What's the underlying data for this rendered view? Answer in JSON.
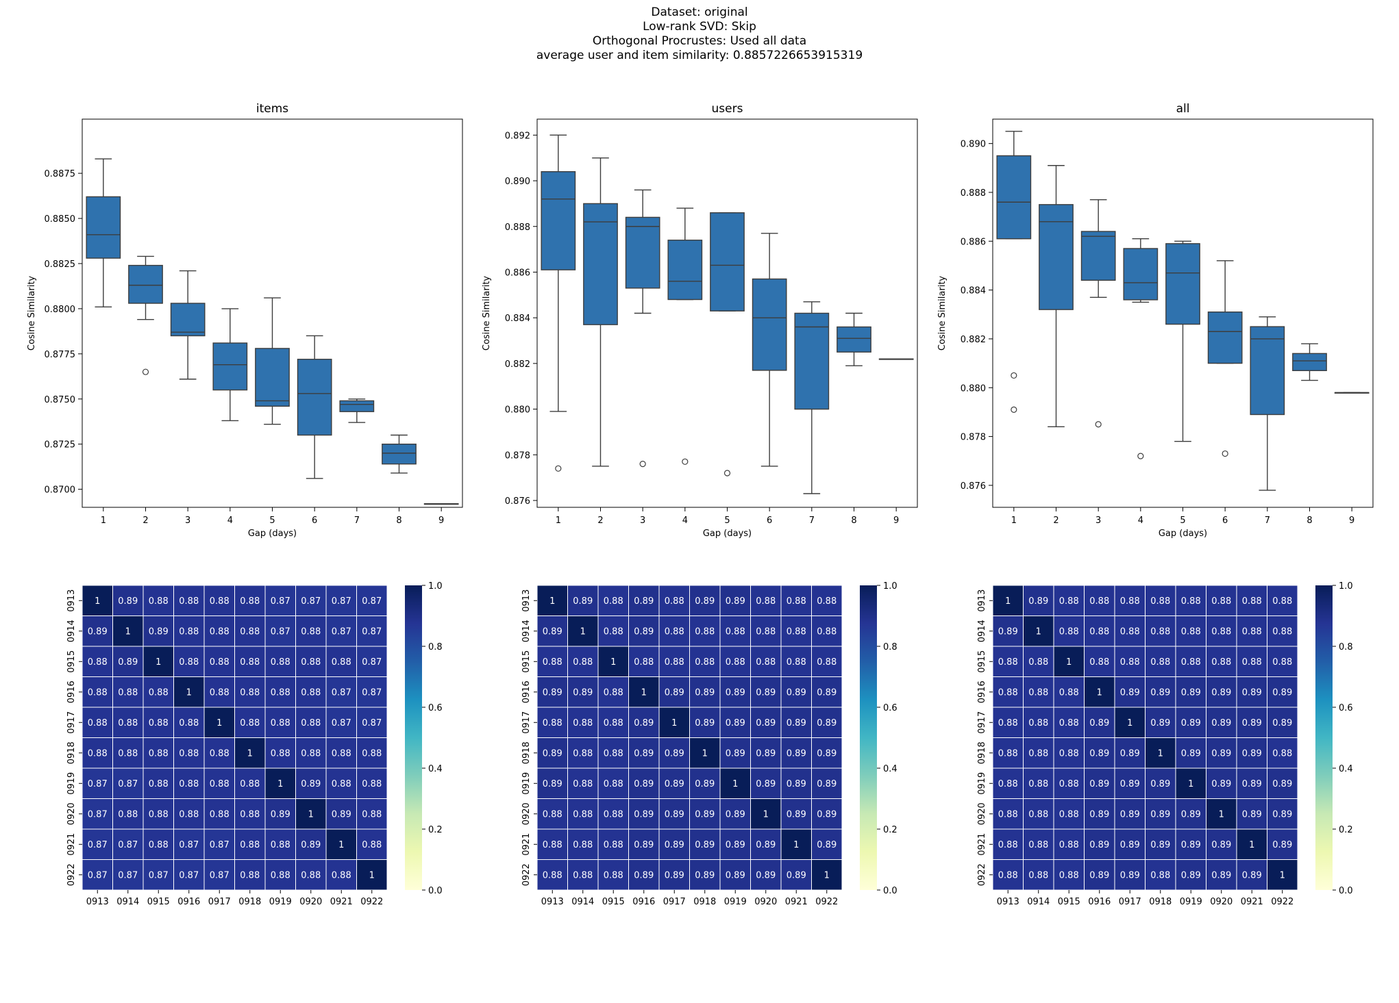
{
  "figure": {
    "suptitle_lines": [
      "Dataset: original",
      "Low-rank SVD: Skip",
      "Orthogonal Procrustes: Used all data",
      "average user and item similarity: 0.8857226653915319"
    ]
  },
  "chart_data": [
    {
      "type": "box",
      "title": "items",
      "xlabel": "Gap (days)",
      "ylabel": "Cosine Similarity",
      "ylim": [
        0.869,
        0.8905
      ],
      "yticks": [
        0.87,
        0.8725,
        0.875,
        0.8775,
        0.88,
        0.8825,
        0.885,
        0.8875
      ],
      "ytick_labels": [
        "0.8700",
        "0.8725",
        "0.8750",
        "0.8775",
        "0.8800",
        "0.8825",
        "0.8850",
        "0.8875"
      ],
      "categories": [
        "1",
        "2",
        "3",
        "4",
        "5",
        "6",
        "7",
        "8",
        "9"
      ],
      "boxes": [
        {
          "whislo": 0.8801,
          "q1": 0.8828,
          "med": 0.8841,
          "q3": 0.8862,
          "whishi": 0.8883,
          "fliers": []
        },
        {
          "whislo": 0.8794,
          "q1": 0.8803,
          "med": 0.8813,
          "q3": 0.8824,
          "whishi": 0.8829,
          "fliers": [
            0.8765
          ]
        },
        {
          "whislo": 0.8761,
          "q1": 0.8785,
          "med": 0.8787,
          "q3": 0.8803,
          "whishi": 0.8821,
          "fliers": []
        },
        {
          "whislo": 0.8738,
          "q1": 0.8755,
          "med": 0.8769,
          "q3": 0.8781,
          "whishi": 0.88,
          "fliers": []
        },
        {
          "whislo": 0.8736,
          "q1": 0.8746,
          "med": 0.8749,
          "q3": 0.8778,
          "whishi": 0.8806,
          "fliers": []
        },
        {
          "whislo": 0.8706,
          "q1": 0.873,
          "med": 0.8753,
          "q3": 0.8772,
          "whishi": 0.8785,
          "fliers": []
        },
        {
          "whislo": 0.8737,
          "q1": 0.8743,
          "med": 0.8747,
          "q3": 0.8749,
          "whishi": 0.875,
          "fliers": []
        },
        {
          "whislo": 0.8709,
          "q1": 0.8714,
          "med": 0.872,
          "q3": 0.8725,
          "whishi": 0.873,
          "fliers": []
        },
        {
          "whislo": 0.8692,
          "q1": 0.8692,
          "med": 0.8692,
          "q3": 0.8692,
          "whishi": 0.8692,
          "fliers": []
        }
      ]
    },
    {
      "type": "box",
      "title": "users",
      "xlabel": "Gap (days)",
      "ylabel": "Cosine Similarity",
      "ylim": [
        0.8757,
        0.8927
      ],
      "yticks": [
        0.876,
        0.878,
        0.88,
        0.882,
        0.884,
        0.886,
        0.888,
        0.89,
        0.892
      ],
      "ytick_labels": [
        "0.876",
        "0.878",
        "0.880",
        "0.882",
        "0.884",
        "0.886",
        "0.888",
        "0.890",
        "0.892"
      ],
      "categories": [
        "1",
        "2",
        "3",
        "4",
        "5",
        "6",
        "7",
        "8",
        "9"
      ],
      "boxes": [
        {
          "whislo": 0.8799,
          "q1": 0.8861,
          "med": 0.8892,
          "q3": 0.8904,
          "whishi": 0.892,
          "fliers": [
            0.8774
          ]
        },
        {
          "whislo": 0.8775,
          "q1": 0.8837,
          "med": 0.8882,
          "q3": 0.889,
          "whishi": 0.891,
          "fliers": []
        },
        {
          "whislo": 0.8842,
          "q1": 0.8853,
          "med": 0.888,
          "q3": 0.8884,
          "whishi": 0.8896,
          "fliers": [
            0.8776
          ]
        },
        {
          "whislo": 0.8848,
          "q1": 0.8848,
          "med": 0.8856,
          "q3": 0.8874,
          "whishi": 0.8888,
          "fliers": [
            0.8777
          ]
        },
        {
          "whislo": 0.8843,
          "q1": 0.8843,
          "med": 0.8863,
          "q3": 0.8886,
          "whishi": 0.8886,
          "fliers": [
            0.8772
          ]
        },
        {
          "whislo": 0.8775,
          "q1": 0.8817,
          "med": 0.884,
          "q3": 0.8857,
          "whishi": 0.8877,
          "fliers": []
        },
        {
          "whislo": 0.8763,
          "q1": 0.88,
          "med": 0.8836,
          "q3": 0.8842,
          "whishi": 0.8847,
          "fliers": []
        },
        {
          "whislo": 0.8819,
          "q1": 0.8825,
          "med": 0.8831,
          "q3": 0.8836,
          "whishi": 0.8842,
          "fliers": []
        },
        {
          "whislo": 0.8822,
          "q1": 0.8822,
          "med": 0.8822,
          "q3": 0.8822,
          "whishi": 0.8822,
          "fliers": []
        }
      ]
    },
    {
      "type": "box",
      "title": "all",
      "xlabel": "Gap (days)",
      "ylabel": "Cosine Similarity",
      "ylim": [
        0.8751,
        0.891
      ],
      "yticks": [
        0.876,
        0.878,
        0.88,
        0.882,
        0.884,
        0.886,
        0.888,
        0.89
      ],
      "ytick_labels": [
        "0.876",
        "0.878",
        "0.880",
        "0.882",
        "0.884",
        "0.886",
        "0.888",
        "0.890"
      ],
      "categories": [
        "1",
        "2",
        "3",
        "4",
        "5",
        "6",
        "7",
        "8",
        "9"
      ],
      "boxes": [
        {
          "whislo": 0.8861,
          "q1": 0.8861,
          "med": 0.8876,
          "q3": 0.8895,
          "whishi": 0.8905,
          "fliers": [
            0.8805,
            0.8791
          ]
        },
        {
          "whislo": 0.8784,
          "q1": 0.8832,
          "med": 0.8868,
          "q3": 0.8875,
          "whishi": 0.8891,
          "fliers": []
        },
        {
          "whislo": 0.8837,
          "q1": 0.8844,
          "med": 0.8862,
          "q3": 0.8864,
          "whishi": 0.8877,
          "fliers": [
            0.8785
          ]
        },
        {
          "whislo": 0.8835,
          "q1": 0.8836,
          "med": 0.8843,
          "q3": 0.8857,
          "whishi": 0.8861,
          "fliers": [
            0.8772
          ]
        },
        {
          "whislo": 0.8778,
          "q1": 0.8826,
          "med": 0.8847,
          "q3": 0.8859,
          "whishi": 0.886,
          "fliers": []
        },
        {
          "whislo": 0.881,
          "q1": 0.881,
          "med": 0.8823,
          "q3": 0.8831,
          "whishi": 0.8852,
          "fliers": [
            0.8773
          ]
        },
        {
          "whislo": 0.8758,
          "q1": 0.8789,
          "med": 0.882,
          "q3": 0.8825,
          "whishi": 0.8829,
          "fliers": []
        },
        {
          "whislo": 0.8803,
          "q1": 0.8807,
          "med": 0.8811,
          "q3": 0.8814,
          "whishi": 0.8818,
          "fliers": []
        },
        {
          "whislo": 0.8798,
          "q1": 0.8798,
          "med": 0.8798,
          "q3": 0.8798,
          "whishi": 0.8798,
          "fliers": []
        }
      ]
    },
    {
      "type": "heatmap",
      "labels": [
        "0913",
        "0914",
        "0915",
        "0916",
        "0917",
        "0918",
        "0919",
        "0920",
        "0921",
        "0922"
      ],
      "colorbar_ticks": [
        0.0,
        0.2,
        0.4,
        0.6,
        0.8,
        1.0
      ],
      "colorbar_tick_labels": [
        "0.0",
        "0.2",
        "0.4",
        "0.6",
        "0.8",
        "1.0"
      ],
      "vmin": 0.0,
      "vmax": 1.0,
      "cmap": "YlGnBu",
      "matrix": [
        [
          "1",
          "0.89",
          "0.88",
          "0.88",
          "0.88",
          "0.88",
          "0.87",
          "0.87",
          "0.87",
          "0.87"
        ],
        [
          "0.89",
          "1",
          "0.89",
          "0.88",
          "0.88",
          "0.88",
          "0.87",
          "0.88",
          "0.87",
          "0.87"
        ],
        [
          "0.88",
          "0.89",
          "1",
          "0.88",
          "0.88",
          "0.88",
          "0.88",
          "0.88",
          "0.88",
          "0.87"
        ],
        [
          "0.88",
          "0.88",
          "0.88",
          "1",
          "0.88",
          "0.88",
          "0.88",
          "0.88",
          "0.87",
          "0.87"
        ],
        [
          "0.88",
          "0.88",
          "0.88",
          "0.88",
          "1",
          "0.88",
          "0.88",
          "0.88",
          "0.87",
          "0.87"
        ],
        [
          "0.88",
          "0.88",
          "0.88",
          "0.88",
          "0.88",
          "1",
          "0.88",
          "0.88",
          "0.88",
          "0.88"
        ],
        [
          "0.87",
          "0.87",
          "0.88",
          "0.88",
          "0.88",
          "0.88",
          "1",
          "0.89",
          "0.88",
          "0.88"
        ],
        [
          "0.87",
          "0.88",
          "0.88",
          "0.88",
          "0.88",
          "0.88",
          "0.89",
          "1",
          "0.89",
          "0.88"
        ],
        [
          "0.87",
          "0.87",
          "0.88",
          "0.87",
          "0.87",
          "0.88",
          "0.88",
          "0.89",
          "1",
          "0.88"
        ],
        [
          "0.87",
          "0.87",
          "0.87",
          "0.87",
          "0.87",
          "0.88",
          "0.88",
          "0.88",
          "0.88",
          "1"
        ]
      ]
    },
    {
      "type": "heatmap",
      "labels": [
        "0913",
        "0914",
        "0915",
        "0916",
        "0917",
        "0918",
        "0919",
        "0920",
        "0921",
        "0922"
      ],
      "colorbar_ticks": [
        0.0,
        0.2,
        0.4,
        0.6,
        0.8,
        1.0
      ],
      "colorbar_tick_labels": [
        "0.0",
        "0.2",
        "0.4",
        "0.6",
        "0.8",
        "1.0"
      ],
      "vmin": 0.0,
      "vmax": 1.0,
      "cmap": "YlGnBu",
      "matrix": [
        [
          "1",
          "0.89",
          "0.88",
          "0.89",
          "0.88",
          "0.89",
          "0.89",
          "0.88",
          "0.88",
          "0.88"
        ],
        [
          "0.89",
          "1",
          "0.88",
          "0.89",
          "0.88",
          "0.88",
          "0.88",
          "0.88",
          "0.88",
          "0.88"
        ],
        [
          "0.88",
          "0.88",
          "1",
          "0.88",
          "0.88",
          "0.88",
          "0.88",
          "0.88",
          "0.88",
          "0.88"
        ],
        [
          "0.89",
          "0.89",
          "0.88",
          "1",
          "0.89",
          "0.89",
          "0.89",
          "0.89",
          "0.89",
          "0.89"
        ],
        [
          "0.88",
          "0.88",
          "0.88",
          "0.89",
          "1",
          "0.89",
          "0.89",
          "0.89",
          "0.89",
          "0.89"
        ],
        [
          "0.89",
          "0.88",
          "0.88",
          "0.89",
          "0.89",
          "1",
          "0.89",
          "0.89",
          "0.89",
          "0.89"
        ],
        [
          "0.89",
          "0.88",
          "0.88",
          "0.89",
          "0.89",
          "0.89",
          "1",
          "0.89",
          "0.89",
          "0.89"
        ],
        [
          "0.88",
          "0.88",
          "0.88",
          "0.89",
          "0.89",
          "0.89",
          "0.89",
          "1",
          "0.89",
          "0.89"
        ],
        [
          "0.88",
          "0.88",
          "0.88",
          "0.89",
          "0.89",
          "0.89",
          "0.89",
          "0.89",
          "1",
          "0.89"
        ],
        [
          "0.88",
          "0.88",
          "0.88",
          "0.89",
          "0.89",
          "0.89",
          "0.89",
          "0.89",
          "0.89",
          "1"
        ]
      ]
    },
    {
      "type": "heatmap",
      "labels": [
        "0913",
        "0914",
        "0915",
        "0916",
        "0917",
        "0918",
        "0919",
        "0920",
        "0921",
        "0922"
      ],
      "colorbar_ticks": [
        0.0,
        0.2,
        0.4,
        0.6,
        0.8,
        1.0
      ],
      "colorbar_tick_labels": [
        "0.0",
        "0.2",
        "0.4",
        "0.6",
        "0.8",
        "1.0"
      ],
      "vmin": 0.0,
      "vmax": 1.0,
      "cmap": "YlGnBu",
      "matrix": [
        [
          "1",
          "0.89",
          "0.88",
          "0.88",
          "0.88",
          "0.88",
          "0.88",
          "0.88",
          "0.88",
          "0.88"
        ],
        [
          "0.89",
          "1",
          "0.88",
          "0.88",
          "0.88",
          "0.88",
          "0.88",
          "0.88",
          "0.88",
          "0.88"
        ],
        [
          "0.88",
          "0.88",
          "1",
          "0.88",
          "0.88",
          "0.88",
          "0.88",
          "0.88",
          "0.88",
          "0.88"
        ],
        [
          "0.88",
          "0.88",
          "0.88",
          "1",
          "0.89",
          "0.89",
          "0.89",
          "0.89",
          "0.89",
          "0.89"
        ],
        [
          "0.88",
          "0.88",
          "0.88",
          "0.89",
          "1",
          "0.89",
          "0.89",
          "0.89",
          "0.89",
          "0.89"
        ],
        [
          "0.88",
          "0.88",
          "0.88",
          "0.89",
          "0.89",
          "1",
          "0.89",
          "0.89",
          "0.89",
          "0.88"
        ],
        [
          "0.88",
          "0.88",
          "0.88",
          "0.89",
          "0.89",
          "0.89",
          "1",
          "0.89",
          "0.89",
          "0.89"
        ],
        [
          "0.88",
          "0.88",
          "0.88",
          "0.89",
          "0.89",
          "0.89",
          "0.89",
          "1",
          "0.89",
          "0.89"
        ],
        [
          "0.88",
          "0.88",
          "0.88",
          "0.89",
          "0.89",
          "0.89",
          "0.89",
          "0.89",
          "1",
          "0.89"
        ],
        [
          "0.88",
          "0.88",
          "0.88",
          "0.89",
          "0.89",
          "0.88",
          "0.89",
          "0.89",
          "0.89",
          "1"
        ]
      ]
    }
  ],
  "colors": {
    "box_fill": "#2f72ae",
    "box_edge": "#3d3d3d",
    "grid_line": "#ffffff"
  }
}
